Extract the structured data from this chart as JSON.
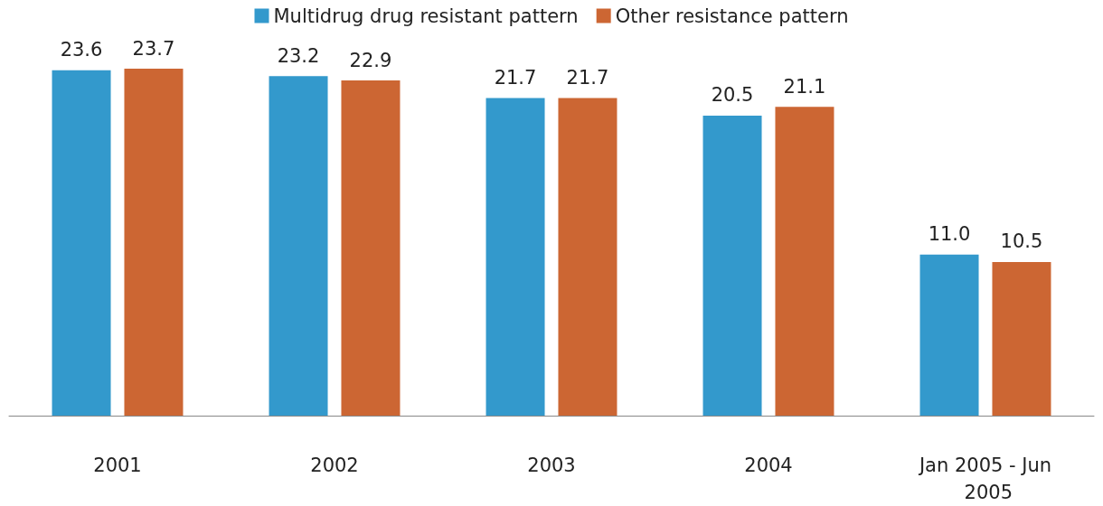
{
  "chart_data": {
    "type": "bar",
    "categories": [
      "2001",
      "2002",
      "2003",
      "2004",
      "Jan 2005 - Jun 2005"
    ],
    "series": [
      {
        "name": "Multidrug drug resistant pattern",
        "color": "#3399cc",
        "values": [
          23.6,
          23.2,
          21.7,
          20.5,
          11.0
        ],
        "value_labels": [
          "23.6",
          "23.2",
          "21.7",
          "20.5",
          "11.0"
        ]
      },
      {
        "name": "Other resistance pattern",
        "color": "#cc6633",
        "values": [
          23.7,
          22.9,
          21.7,
          21.1,
          10.5
        ],
        "value_labels": [
          "23.7",
          "22.9",
          "21.7",
          "21.1",
          "10.5"
        ]
      }
    ],
    "legend": "top",
    "grid": false
  }
}
